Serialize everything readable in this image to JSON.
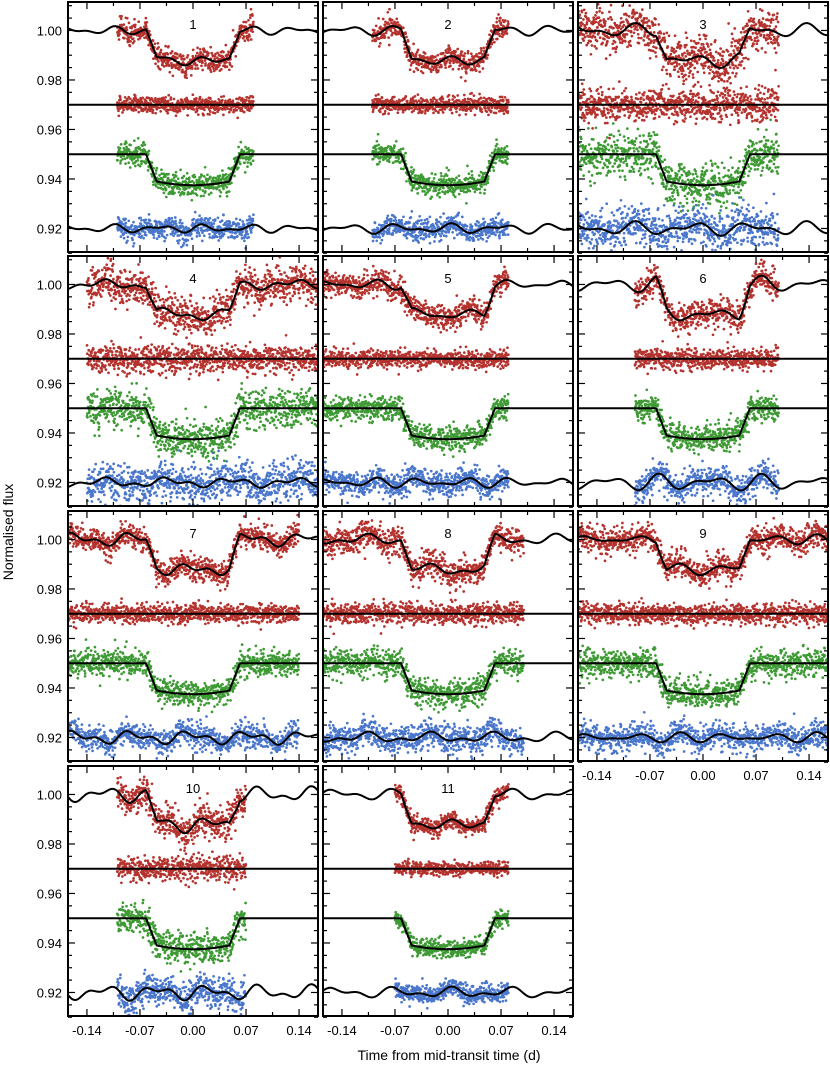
{
  "chart_data": {
    "type": "scatter",
    "xlabel": "Time from mid-transit time (d)",
    "ylabel": "Normalised flux",
    "xlim": [
      -0.165,
      0.165
    ],
    "ylim": [
      0.9105,
      1.0115
    ],
    "xticks": [
      -0.14,
      -0.07,
      0.0,
      0.07,
      0.14
    ],
    "xtick_labels": [
      "-0.14",
      "-0.07",
      "0.00",
      "0.07",
      "0.14"
    ],
    "yticks": [
      0.92,
      0.94,
      0.96,
      0.98,
      1.0
    ],
    "ytick_labels": [
      "0.92",
      "0.94",
      "0.96",
      "0.98",
      "1.00"
    ],
    "colors": {
      "red": "#b5332e",
      "green": "#3e9a34",
      "blue": "#4a77cc",
      "model": "#000000"
    },
    "series_offsets": {
      "raw_baseline": 1.0,
      "residual_baseline": 0.97,
      "detrended_baseline": 0.95,
      "noise_model_baseline": 0.92
    },
    "transit": {
      "depth": 0.0125,
      "ingress_start": -0.062,
      "ingress_end": -0.048,
      "egress_start": 0.048,
      "egress_end": 0.062
    },
    "layout_grid": {
      "rows": 4,
      "cols": 3
    },
    "panels": [
      {
        "label": "1",
        "t_start": -0.1,
        "t_end": 0.08,
        "scatter": 0.0022,
        "wiggle": 0.0015
      },
      {
        "label": "2",
        "t_start": -0.1,
        "t_end": 0.08,
        "scatter": 0.0022,
        "wiggle": 0.0018
      },
      {
        "label": "3",
        "t_start": -0.165,
        "t_end": 0.1,
        "scatter": 0.0042,
        "wiggle": 0.0025
      },
      {
        "label": "4",
        "t_start": -0.14,
        "t_end": 0.165,
        "scatter": 0.0038,
        "wiggle": 0.0018
      },
      {
        "label": "5",
        "t_start": -0.165,
        "t_end": 0.08,
        "scatter": 0.0025,
        "wiggle": 0.0018
      },
      {
        "label": "6",
        "t_start": -0.09,
        "t_end": 0.1,
        "scatter": 0.0028,
        "wiggle": 0.003
      },
      {
        "label": "7",
        "t_start": -0.165,
        "t_end": 0.14,
        "scatter": 0.0025,
        "wiggle": 0.0025
      },
      {
        "label": "8",
        "t_start": -0.165,
        "t_end": 0.1,
        "scatter": 0.0028,
        "wiggle": 0.002
      },
      {
        "label": "9",
        "t_start": -0.165,
        "t_end": 0.165,
        "scatter": 0.0028,
        "wiggle": 0.0018
      },
      {
        "label": "10",
        "t_start": -0.1,
        "t_end": 0.07,
        "scatter": 0.0032,
        "wiggle": 0.0028
      },
      {
        "label": "11",
        "t_start": -0.07,
        "t_end": 0.08,
        "scatter": 0.0018,
        "wiggle": 0.002
      }
    ]
  }
}
